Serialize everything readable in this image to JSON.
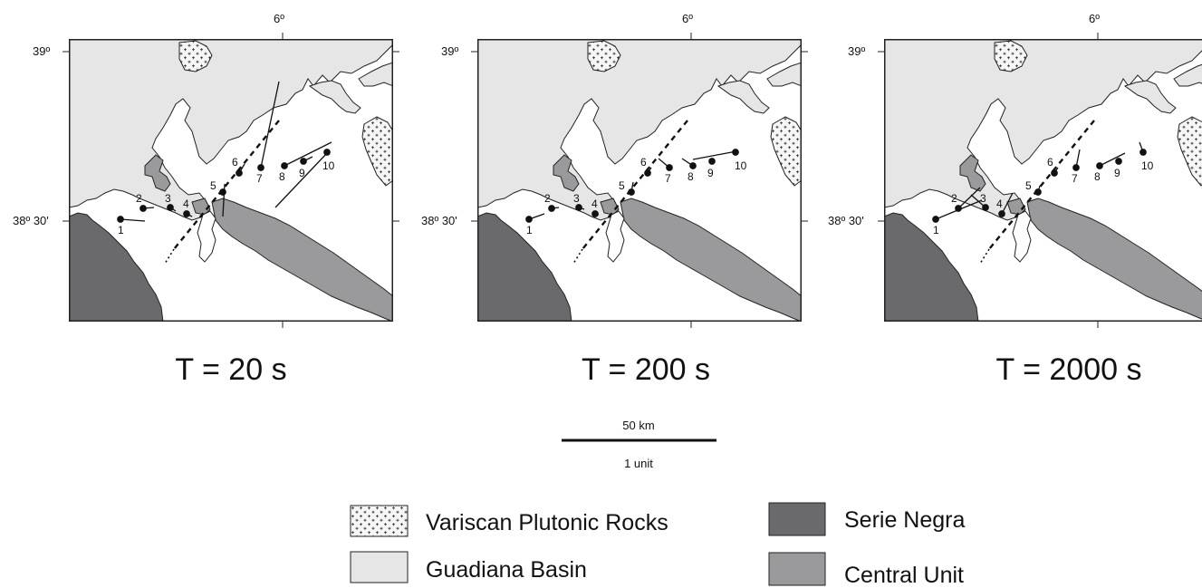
{
  "coords": {
    "lon": "6º",
    "lat_top": "39º",
    "lat_mid": "38º 30'"
  },
  "panels": [
    {
      "title": "T = 20 s"
    },
    {
      "title": "T = 200 s"
    },
    {
      "title": "T = 2000 s"
    }
  ],
  "stations": [
    "1",
    "2",
    "3",
    "4",
    "5",
    "6",
    "7",
    "8",
    "9",
    "10"
  ],
  "scale": {
    "distance": "50 km",
    "unit": "1 unit"
  },
  "legend": {
    "plutonic": "Variscan Plutonic Rocks",
    "guadiana": "Guadiana Basin",
    "serie_negra": "Serie Negra",
    "central_unit": "Central Unit"
  },
  "colors": {
    "guadiana": "#e6e6e6",
    "serie_negra": "#6a6a6c",
    "central_unit": "#9a9a9c",
    "plutonic": "#f4f4f4",
    "outline": "#222222"
  }
}
